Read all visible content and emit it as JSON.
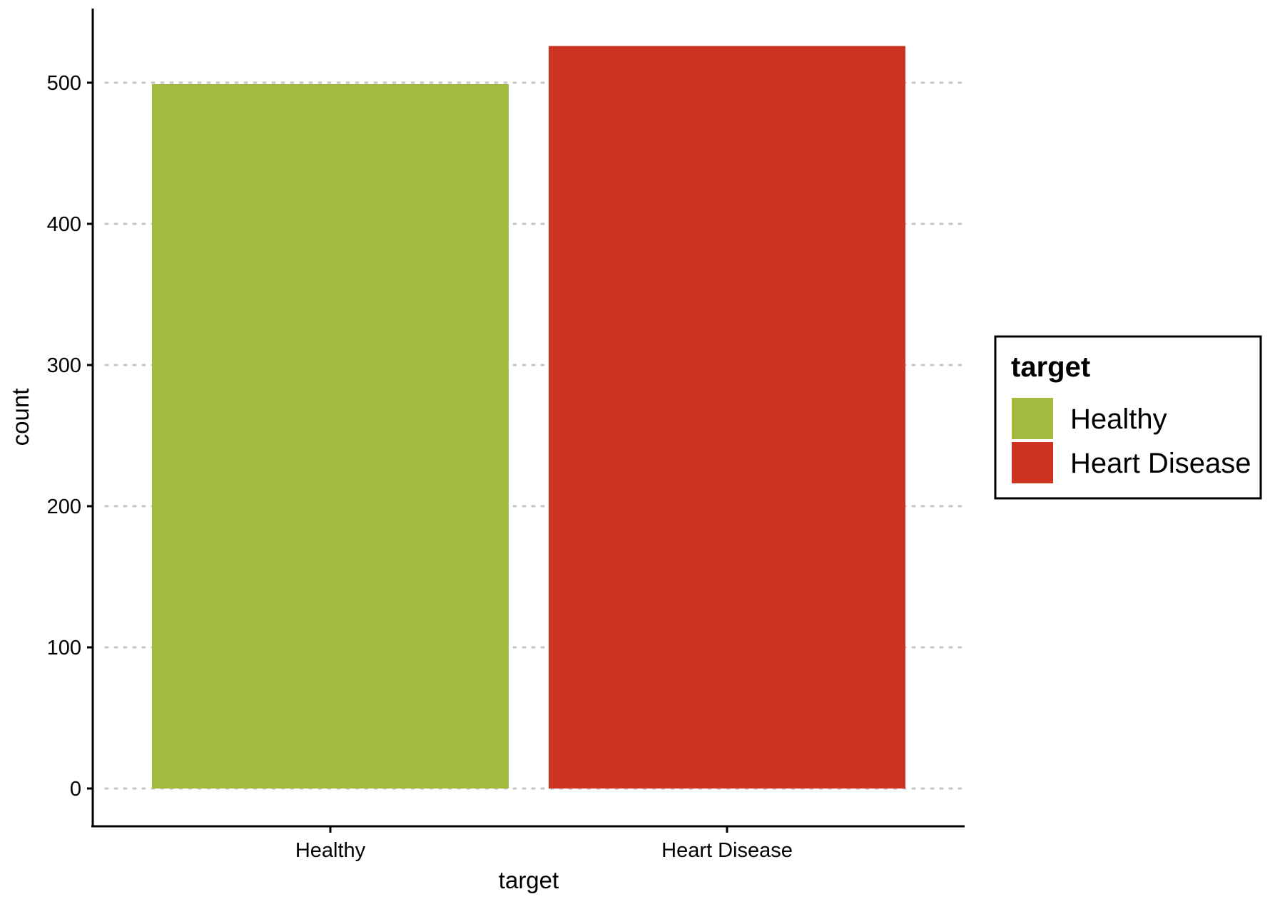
{
  "chart_data": {
    "type": "bar",
    "categories": [
      "Healthy",
      "Heart Disease"
    ],
    "values": [
      499,
      526
    ],
    "colors": [
      "#a1bb3e",
      "#cc3421"
    ],
    "xlabel": "target",
    "ylabel": "count",
    "ylim": [
      0,
      550
    ],
    "yticks": [
      0,
      100,
      200,
      300,
      400,
      500
    ],
    "ytick_labels": [
      "0",
      "100",
      "200",
      "300",
      "400",
      "500"
    ],
    "grid": "horizontal dotted",
    "legend": {
      "title": "target",
      "placement": "right",
      "entries": [
        "Healthy",
        "Heart Disease"
      ]
    }
  }
}
